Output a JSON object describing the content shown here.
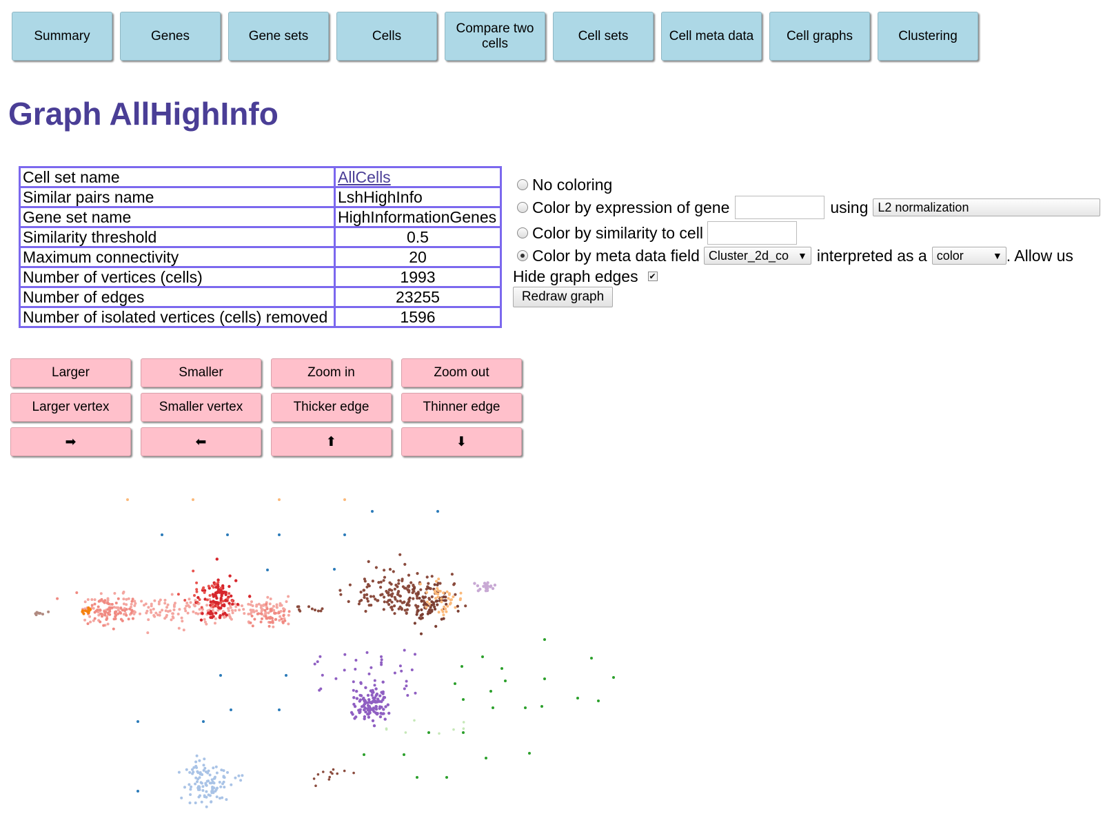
{
  "nav": [
    "Summary",
    "Genes",
    "Gene sets",
    "Cells",
    "Compare two cells",
    "Cell sets",
    "Cell meta data",
    "Cell graphs",
    "Clustering"
  ],
  "page_title": "Graph AllHighInfo",
  "info_table": [
    {
      "label": "Cell set name",
      "value": "AllCells",
      "link": true
    },
    {
      "label": "Similar pairs name",
      "value": "LshHighInfo"
    },
    {
      "label": "Gene set name",
      "value": "HighInformationGenes"
    },
    {
      "label": "Similarity threshold",
      "value": "0.5"
    },
    {
      "label": "Maximum connectivity",
      "value": "20"
    },
    {
      "label": "Number of vertices (cells)",
      "value": "1993"
    },
    {
      "label": "Number of edges",
      "value": "23255"
    },
    {
      "label": "Number of isolated vertices (cells) removed",
      "value": "1596"
    }
  ],
  "graph_buttons": [
    "Larger",
    "Smaller",
    "Zoom in",
    "Zoom out",
    "Larger vertex",
    "Smaller vertex",
    "Thicker edge",
    "Thinner edge",
    "➡",
    "⬅",
    "⬆",
    "⬇"
  ],
  "coloring": {
    "no_coloring": "No coloring",
    "by_gene": "Color by expression of gene",
    "using": "using",
    "normalization": "L2 normalization",
    "by_similarity": "Color by similarity to cell",
    "by_meta": "Color by meta data field",
    "meta_field": "Cluster_2d_co",
    "interpreted_as": "interpreted as a",
    "interpretation": "color",
    "allow_text": ". Allow us",
    "selected": "by_meta"
  },
  "hide_edges_label": "Hide graph edges",
  "hide_edges_checked": true,
  "redraw_label": "Redraw graph",
  "colors": {
    "nav_bg": "#add8e6",
    "button_bg": "#ffc0cb",
    "title": "#4a3e96",
    "table_border": "#7b68ee"
  }
}
